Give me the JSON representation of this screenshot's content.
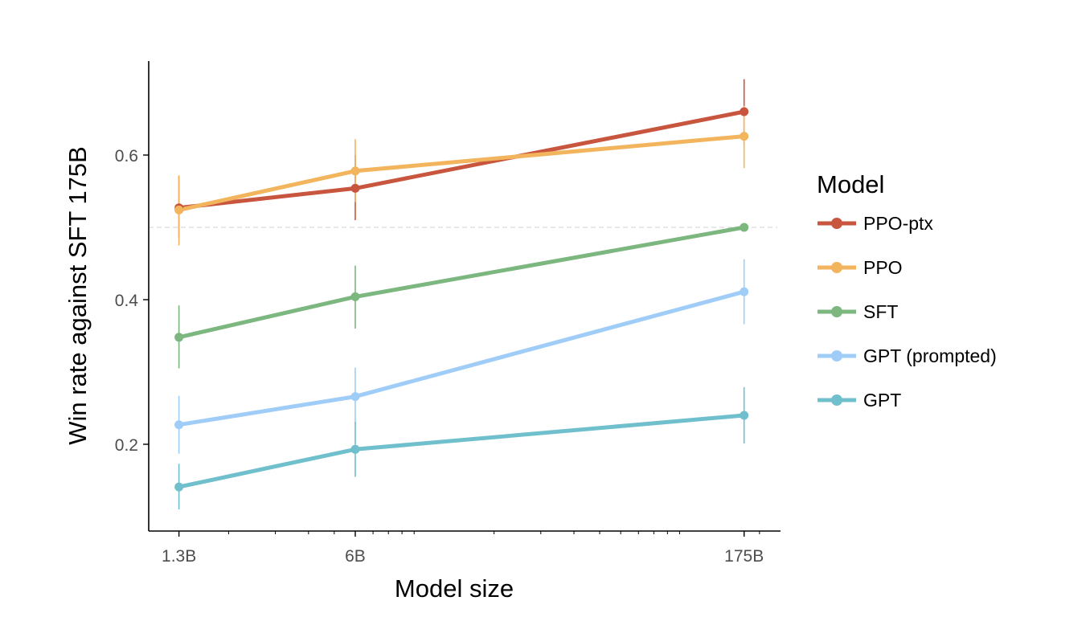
{
  "chart_data": {
    "type": "line",
    "xlabel": "Model size",
    "ylabel": "Win rate against SFT 175B",
    "x_scale": "log",
    "x": [
      "1.3B",
      "6B",
      "175B"
    ],
    "x_values_billions": [
      1.3,
      6,
      175
    ],
    "xlim_billions": [
      1.0,
      240
    ],
    "ylim": [
      0.08,
      0.73
    ],
    "y_ticks": [
      0.2,
      0.4,
      0.6
    ],
    "reference_line": 0.5,
    "grid": false,
    "legend": {
      "title": "Model",
      "position": "right"
    },
    "series": [
      {
        "name": "PPO-ptx",
        "color": "#c8553d",
        "values": [
          0.527,
          0.554,
          0.66
        ],
        "err_low": [
          0.485,
          0.51,
          0.615
        ],
        "err_high": [
          0.57,
          0.6,
          0.705
        ]
      },
      {
        "name": "PPO",
        "color": "#f2b45c",
        "values": [
          0.524,
          0.578,
          0.626
        ],
        "err_low": [
          0.475,
          0.535,
          0.582
        ],
        "err_high": [
          0.572,
          0.622,
          0.668
        ]
      },
      {
        "name": "SFT",
        "color": "#7bb77e",
        "values": [
          0.348,
          0.404,
          0.5
        ],
        "err_low": [
          0.305,
          0.36,
          0.5
        ],
        "err_high": [
          0.392,
          0.447,
          0.5
        ]
      },
      {
        "name": "GPT (prompted)",
        "color": "#9fcdf7",
        "values": [
          0.227,
          0.266,
          0.411
        ],
        "err_low": [
          0.187,
          0.228,
          0.366
        ],
        "err_high": [
          0.267,
          0.306,
          0.456
        ]
      },
      {
        "name": "GPT",
        "color": "#70bfcc",
        "values": [
          0.141,
          0.193,
          0.24
        ],
        "err_low": [
          0.11,
          0.155,
          0.201
        ],
        "err_high": [
          0.173,
          0.231,
          0.279
        ]
      }
    ]
  }
}
